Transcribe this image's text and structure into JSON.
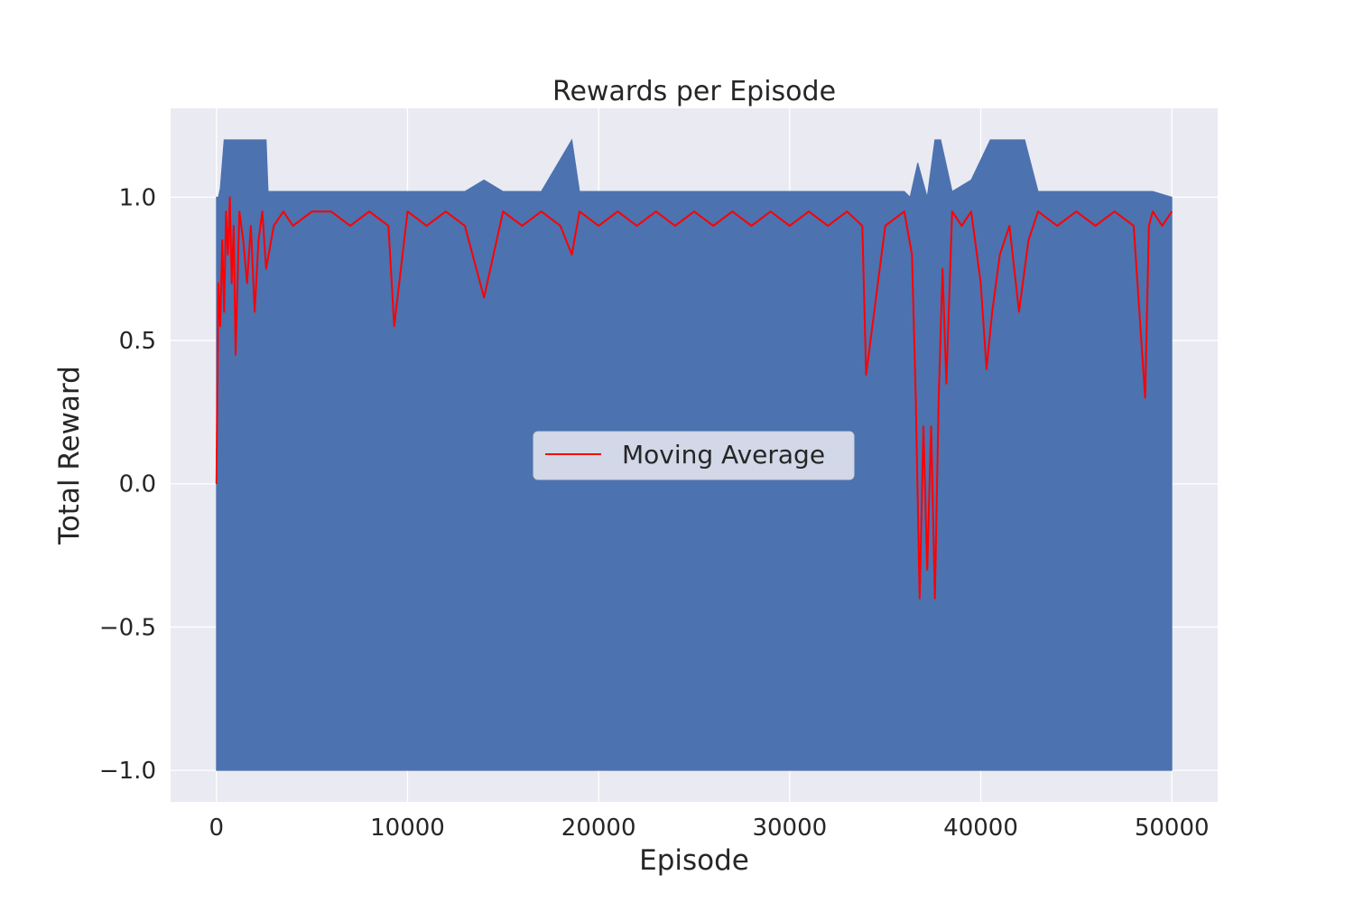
{
  "chart_data": {
    "type": "line",
    "title": "Rewards per Episode",
    "xlabel": "Episode",
    "ylabel": "Total Reward",
    "xlim": [
      -2400,
      52400
    ],
    "ylim": [
      -1.11,
      1.31
    ],
    "x_ticks": [
      0,
      10000,
      20000,
      30000,
      40000,
      50000
    ],
    "x_tick_labels": [
      "0",
      "10000",
      "20000",
      "30000",
      "40000",
      "50000"
    ],
    "y_ticks": [
      -1.0,
      -0.5,
      0.0,
      0.5,
      1.0
    ],
    "y_tick_labels": [
      "−1.0",
      "−0.5",
      "0.0",
      "0.5",
      "1.0"
    ],
    "grid": true,
    "background_color": "#eaeaf2",
    "legend": {
      "placement": "center",
      "entries": [
        "Moving Average"
      ]
    },
    "series": [
      {
        "color": "#4c72b0",
        "x": [
          0,
          100,
          200,
          400,
          500,
          700,
          1000,
          1300,
          1600,
          2000,
          2300,
          2600,
          2700,
          3500,
          5000,
          7000,
          9000,
          11000,
          13000,
          14000,
          15000,
          17000,
          18600,
          19000,
          21000,
          23000,
          25000,
          27000,
          29000,
          31000,
          33000,
          34000,
          35000,
          36000,
          36300,
          36700,
          37200,
          37600,
          37900,
          38500,
          39500,
          40500,
          41000,
          41500,
          42300,
          43000,
          45000,
          47000,
          49000,
          50000
        ],
        "upper": [
          1.0,
          1.0,
          1.03,
          1.2,
          1.2,
          1.2,
          1.2,
          1.2,
          1.2,
          1.2,
          1.2,
          1.2,
          1.02,
          1.02,
          1.02,
          1.02,
          1.02,
          1.02,
          1.02,
          1.06,
          1.02,
          1.02,
          1.2,
          1.02,
          1.02,
          1.02,
          1.02,
          1.02,
          1.02,
          1.02,
          1.02,
          1.02,
          1.02,
          1.02,
          1.0,
          1.12,
          1.0,
          1.2,
          1.2,
          1.02,
          1.06,
          1.2,
          1.2,
          1.2,
          1.2,
          1.02,
          1.02,
          1.02,
          1.02,
          1.0
        ],
        "lower": [
          -1.0,
          -1.0,
          -1.0,
          -1.0,
          -1.0,
          -1.0,
          -1.0,
          -1.0,
          -1.0,
          -1.0,
          -1.0,
          -1.0,
          -1.0,
          -1.0,
          -1.0,
          -1.0,
          -1.0,
          -1.0,
          -1.0,
          -1.0,
          -1.0,
          -1.0,
          -1.0,
          -1.0,
          -1.0,
          -1.0,
          -1.0,
          -1.0,
          -1.0,
          -1.0,
          -1.0,
          -1.0,
          -1.0,
          -1.0,
          -1.0,
          -1.0,
          -1.0,
          -1.0,
          -1.0,
          -1.0,
          -1.0,
          -1.0,
          -1.0,
          -1.0,
          -1.0,
          -1.0,
          -1.0,
          -1.0,
          -1.0,
          -1.0
        ]
      },
      {
        "name": "Moving Average",
        "color": "#ff0000",
        "x": [
          0,
          100,
          200,
          300,
          400,
          500,
          600,
          700,
          800,
          900,
          1000,
          1200,
          1400,
          1600,
          1800,
          2000,
          2200,
          2400,
          2600,
          3000,
          3500,
          4000,
          5000,
          6000,
          7000,
          8000,
          9000,
          9300,
          10000,
          11000,
          12000,
          13000,
          14000,
          15000,
          16000,
          17000,
          18000,
          18600,
          19000,
          20000,
          21000,
          22000,
          23000,
          24000,
          25000,
          26000,
          27000,
          28000,
          29000,
          30000,
          31000,
          32000,
          33000,
          33800,
          34000,
          35000,
          36000,
          36400,
          36600,
          36800,
          37000,
          37200,
          37400,
          37600,
          37800,
          38000,
          38200,
          38500,
          39000,
          39500,
          40000,
          40300,
          40600,
          41000,
          41500,
          42000,
          42500,
          43000,
          44000,
          45000,
          46000,
          47000,
          48000,
          48600,
          48800,
          49000,
          49500,
          50000
        ],
        "y": [
          0.0,
          0.7,
          0.55,
          0.85,
          0.6,
          0.95,
          0.8,
          1.0,
          0.7,
          0.9,
          0.45,
          0.95,
          0.85,
          0.7,
          0.9,
          0.6,
          0.85,
          0.95,
          0.75,
          0.9,
          0.95,
          0.9,
          0.95,
          0.95,
          0.9,
          0.95,
          0.9,
          0.55,
          0.95,
          0.9,
          0.95,
          0.9,
          0.65,
          0.95,
          0.9,
          0.95,
          0.9,
          0.8,
          0.95,
          0.9,
          0.95,
          0.9,
          0.95,
          0.9,
          0.95,
          0.9,
          0.95,
          0.9,
          0.95,
          0.9,
          0.95,
          0.9,
          0.95,
          0.9,
          0.38,
          0.9,
          0.95,
          0.8,
          0.3,
          -0.4,
          0.2,
          -0.3,
          0.2,
          -0.4,
          0.3,
          0.75,
          0.35,
          0.95,
          0.9,
          0.95,
          0.7,
          0.4,
          0.6,
          0.8,
          0.9,
          0.6,
          0.85,
          0.95,
          0.9,
          0.95,
          0.9,
          0.95,
          0.9,
          0.3,
          0.9,
          0.95,
          0.9,
          0.95
        ]
      }
    ]
  }
}
